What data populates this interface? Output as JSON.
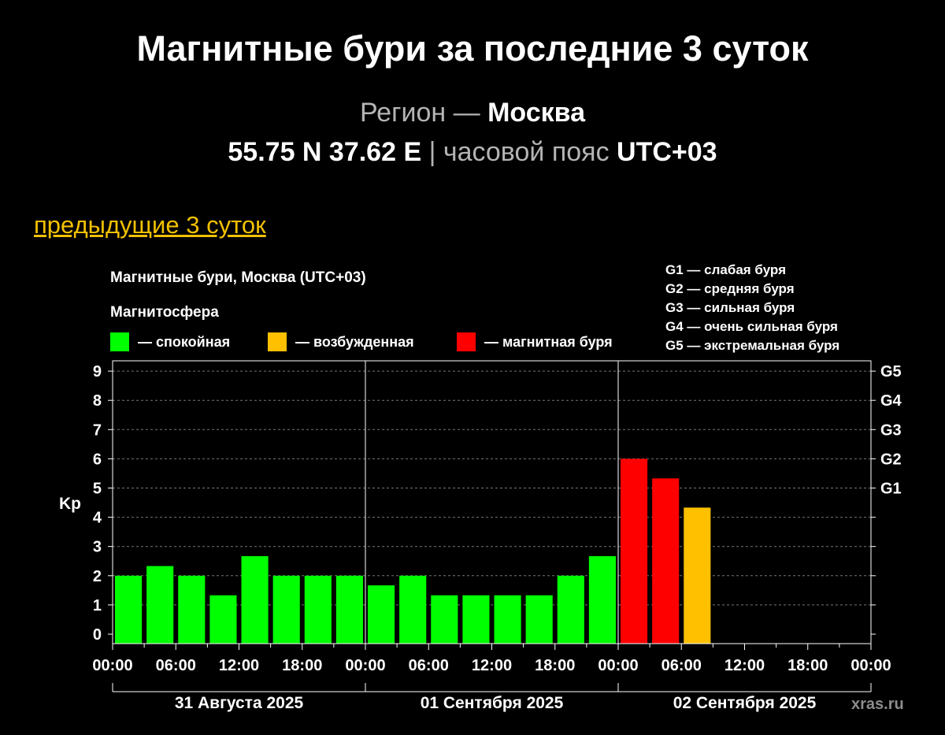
{
  "header": {
    "title": "Магнитные бури за последние 3 суток",
    "region_label": "Регион —",
    "region_value": "Москва",
    "coords": "55.75 N 37.62 E",
    "separator": "|",
    "timezone_label": "часовой пояс",
    "timezone_value": "UTC+03"
  },
  "nav": {
    "previous_link": "предыдущие 3 суток"
  },
  "watermark": "xras.ru",
  "colors": {
    "quiet": "#00ff00",
    "excited": "#ffc000",
    "storm": "#ff0000",
    "grid": "#777777",
    "axis": "#ffffff"
  },
  "chart_data": {
    "type": "bar",
    "title": "Магнитные бури, Москва (UTC+03)",
    "ylabel": "Kp",
    "ylim": [
      0,
      9
    ],
    "yticks": [
      "0",
      "1",
      "2",
      "3",
      "4",
      "5",
      "6",
      "7",
      "8",
      "9"
    ],
    "storm_levels": [
      {
        "label": "G1",
        "kp": 5
      },
      {
        "label": "G2",
        "kp": 6
      },
      {
        "label": "G3",
        "kp": 7
      },
      {
        "label": "G4",
        "kp": 8
      },
      {
        "label": "G5",
        "kp": 9
      }
    ],
    "legend": {
      "heading": "Магнитосфера",
      "items": [
        {
          "key": "quiet",
          "label": "— спокойная"
        },
        {
          "key": "excited",
          "label": "— возбужденная"
        },
        {
          "key": "storm",
          "label": "— магнитная буря"
        }
      ],
      "storm_scale": [
        "G1 — слабая буря",
        "G2 — средняя буря",
        "G3 — сильная буря",
        "G4 — очень сильная буря",
        "G5 — экстремальная буря"
      ]
    },
    "x_tick_labels": [
      "00:00",
      "06:00",
      "12:00",
      "18:00",
      "00:00",
      "06:00",
      "12:00",
      "18:00",
      "00:00",
      "06:00",
      "12:00",
      "18:00",
      "00:00"
    ],
    "days": [
      "31 Августа 2025",
      "01 Сентября 2025",
      "02 Сентября 2025"
    ],
    "interval_hours": 3,
    "values": [
      2.0,
      2.33,
      2.0,
      1.33,
      2.67,
      2.0,
      2.0,
      2.0,
      1.67,
      2.0,
      1.33,
      1.33,
      1.33,
      1.33,
      2.0,
      2.67,
      6.0,
      5.33,
      4.33
    ],
    "levels": [
      "quiet",
      "quiet",
      "quiet",
      "quiet",
      "quiet",
      "quiet",
      "quiet",
      "quiet",
      "quiet",
      "quiet",
      "quiet",
      "quiet",
      "quiet",
      "quiet",
      "quiet",
      "quiet",
      "storm",
      "storm",
      "excited"
    ]
  }
}
